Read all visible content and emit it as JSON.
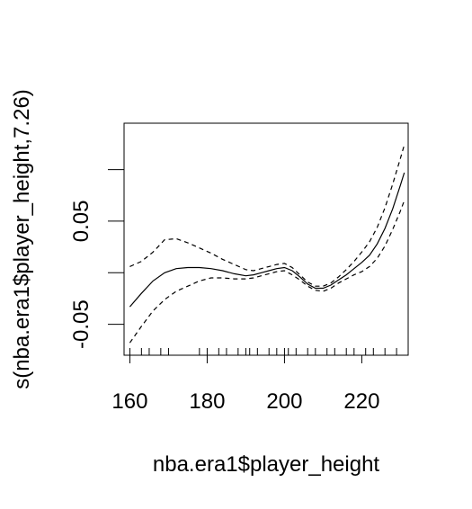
{
  "chart_data": {
    "type": "line",
    "xlabel": "nba.era1$player_height",
    "ylabel": "s(nba.era1$player_height,7.26)",
    "xlim": [
      158.5,
      232
    ],
    "ylim": [
      -0.08,
      0.145
    ],
    "x_ticks": [
      160,
      180,
      200,
      220
    ],
    "x_tick_labels": [
      "160",
      "180",
      "200",
      "220"
    ],
    "y_ticks": [
      -0.05,
      0,
      0.05,
      0.1
    ],
    "y_tick_labels": [
      "-0.05",
      "",
      "0.05",
      ""
    ],
    "grid": false,
    "rug": [
      160,
      163,
      165,
      168,
      170,
      178,
      180,
      183,
      185,
      188,
      190,
      191,
      193,
      196,
      198,
      200,
      201,
      203,
      206,
      208,
      211,
      213,
      216,
      218,
      221,
      223,
      226,
      229
    ],
    "series": [
      {
        "style": "solid",
        "x": [
          160,
          163,
          166,
          169,
          172,
          175,
          178,
          181,
          184,
          187,
          190,
          192,
          194,
          196,
          198,
          200,
          202,
          204,
          206,
          208,
          210,
          212,
          214,
          216,
          218,
          220,
          222,
          224,
          226,
          228,
          230,
          231
        ],
        "values": [
          -0.033,
          -0.02,
          -0.008,
          0.0,
          0.004,
          0.005,
          0.005,
          0.004,
          0.002,
          -0.001,
          -0.003,
          -0.002,
          0.0,
          0.002,
          0.004,
          0.005,
          0.002,
          -0.004,
          -0.011,
          -0.015,
          -0.015,
          -0.012,
          -0.007,
          -0.002,
          0.004,
          0.01,
          0.017,
          0.028,
          0.043,
          0.062,
          0.085,
          0.097
        ]
      },
      {
        "style": "dashed",
        "x": [
          160,
          163,
          166,
          169,
          172,
          175,
          178,
          181,
          184,
          187,
          190,
          192,
          194,
          196,
          198,
          200,
          202,
          204,
          206,
          208,
          210,
          212,
          214,
          216,
          218,
          220,
          222,
          224,
          226,
          228,
          230,
          231
        ],
        "values": [
          0.006,
          0.011,
          0.02,
          0.032,
          0.033,
          0.029,
          0.024,
          0.019,
          0.013,
          0.008,
          0.003,
          0.002,
          0.004,
          0.006,
          0.008,
          0.009,
          0.005,
          -0.002,
          -0.009,
          -0.013,
          -0.013,
          -0.01,
          -0.004,
          0.003,
          0.011,
          0.02,
          0.03,
          0.044,
          0.063,
          0.086,
          0.111,
          0.124
        ]
      },
      {
        "style": "dashed",
        "x": [
          160,
          163,
          166,
          169,
          172,
          175,
          178,
          181,
          184,
          187,
          190,
          192,
          194,
          196,
          198,
          200,
          202,
          204,
          206,
          208,
          210,
          212,
          214,
          216,
          218,
          220,
          222,
          224,
          226,
          228,
          230,
          231
        ],
        "values": [
          -0.068,
          -0.052,
          -0.037,
          -0.026,
          -0.018,
          -0.013,
          -0.008,
          -0.005,
          -0.005,
          -0.006,
          -0.006,
          -0.005,
          -0.003,
          -0.001,
          0.001,
          0.002,
          -0.002,
          -0.007,
          -0.013,
          -0.017,
          -0.018,
          -0.015,
          -0.01,
          -0.006,
          -0.002,
          0.001,
          0.006,
          0.014,
          0.026,
          0.042,
          0.06,
          0.07
        ]
      }
    ]
  }
}
